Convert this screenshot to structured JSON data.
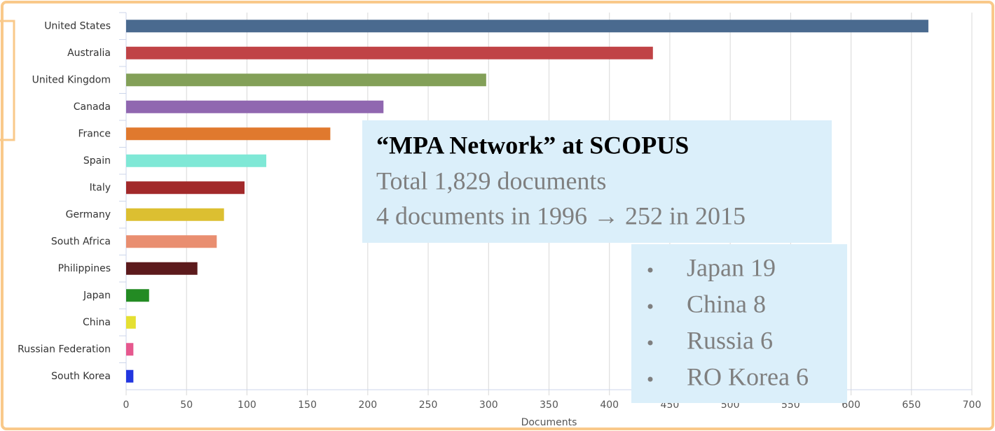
{
  "chart_data": {
    "type": "hbar",
    "categories": [
      "United States",
      "Australia",
      "United Kingdom",
      "Canada",
      "France",
      "Spain",
      "Italy",
      "Germany",
      "South Africa",
      "Philippines",
      "Japan",
      "China",
      "Russian Federation",
      "South Korea"
    ],
    "values": [
      664,
      436,
      298,
      213,
      169,
      116,
      98,
      81,
      75,
      59,
      19,
      8,
      6,
      6
    ],
    "colors": [
      "#4a6a8f",
      "#c04346",
      "#83a058",
      "#9067b0",
      "#e0792e",
      "#7fe8d6",
      "#a2292a",
      "#dcbf31",
      "#e98e70",
      "#5c1a1c",
      "#238b23",
      "#e5e032",
      "#e6588e",
      "#2236e0"
    ],
    "xlabel": "Documents",
    "xlim": [
      0,
      700
    ],
    "xticks": [
      0,
      50,
      100,
      150,
      200,
      250,
      300,
      350,
      400,
      450,
      500,
      550,
      600,
      650,
      700
    ],
    "grid": true,
    "annotation": {
      "title": "“MPA Network” at SCOPUS",
      "lines": [
        "Total 1,829 documents",
        "4 documents in 1996 → 252 in 2015"
      ]
    },
    "bullets": [
      "Japan 19",
      "China 8",
      "Russia 6",
      "RO Korea 6"
    ]
  }
}
